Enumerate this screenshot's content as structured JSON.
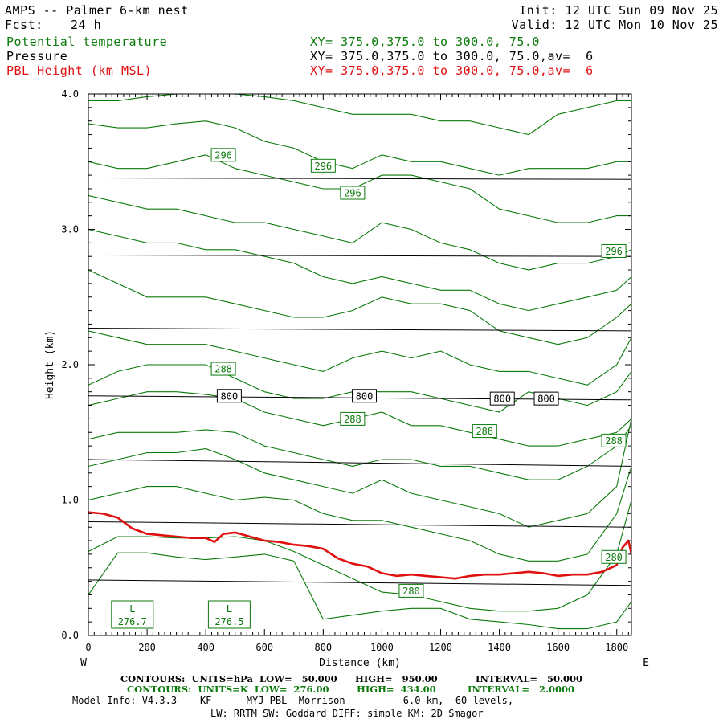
{
  "header": {
    "title": "AMPS -- Palmer 6-km nest",
    "fcst_label": "Fcst:",
    "fcst_value": "24 h",
    "init": "Init: 12 UTC Sun 09 Nov 25",
    "valid": "Valid: 12 UTC Mon 10 Nov 25",
    "field1_name": "Potential temperature",
    "field1_xy": "XY= 375.0,375.0 to 300.0, 75.0",
    "field2_name": "Pressure",
    "field2_xy": "XY= 375.0,375.0 to 300.0, 75.0,av=  6",
    "field3_name": "PBL Height (km MSL)",
    "field3_xy": "XY= 375.0,375.0 to 300.0, 75.0,av=  6"
  },
  "footer": {
    "line1_contours": "CONTOURS:  UNITS=hPa  LOW=   50.000",
    "line1_high": "HIGH=   950.00",
    "line1_interval": "INTERVAL=   50.000",
    "line2_contours": "CONTOURS:  UNITS=K  LOW=  276.00",
    "line2_high": "HIGH=  434.00",
    "line2_interval": "INTERVAL=   2.0000",
    "model_info": "Model Info: V4.3.3    KF      MYJ PBL  Morrison          6.0 km,  60 levels,",
    "physics": "LW: RRTM SW: Goddard DIFF: simple KM: 2D Smagor"
  },
  "colors": {
    "theta": "#0a7a0a",
    "pressure": "#000000",
    "pbl": "#e01010"
  },
  "chart_data": {
    "type": "line",
    "xlabel": "Distance (km)",
    "ylabel": "Height (km)",
    "xlim": [
      0,
      1850
    ],
    "ylim": [
      0,
      4.0
    ],
    "x_ticks": [
      0,
      200,
      400,
      600,
      800,
      1000,
      1200,
      1400,
      1600,
      1800
    ],
    "y_ticks": [
      "0.0",
      "1.0",
      "2.0",
      "3.0",
      "4.0"
    ],
    "x_left_label": "W",
    "x_right_label": "E",
    "pressure_lines": {
      "x": [
        0,
        1850
      ],
      "series": [
        {
          "y": [
            3.38,
            3.37
          ]
        },
        {
          "y": [
            2.81,
            2.8
          ]
        },
        {
          "y": [
            2.27,
            2.25
          ]
        },
        {
          "y": [
            1.77,
            1.74
          ]
        },
        {
          "y": [
            1.3,
            1.25
          ]
        },
        {
          "y": [
            0.84,
            0.8
          ]
        },
        {
          "y": [
            0.41,
            0.37
          ]
        }
      ],
      "labels": [
        {
          "text": "800",
          "x": 480,
          "y": 1.77
        },
        {
          "text": "800",
          "x": 940,
          "y": 1.77
        },
        {
          "text": "800",
          "x": 1410,
          "y": 1.75
        },
        {
          "text": "800",
          "x": 1560,
          "y": 1.75
        }
      ]
    },
    "theta_lines": {
      "x": [
        0,
        100,
        200,
        300,
        400,
        500,
        600,
        700,
        800,
        900,
        1000,
        1100,
        1200,
        1300,
        1400,
        1500,
        1600,
        1700,
        1800,
        1850
      ],
      "series": [
        {
          "y": [
            0.3,
            0.61,
            0.61,
            0.58,
            0.56,
            0.58,
            0.6,
            0.55,
            0.12,
            0.15,
            0.18,
            0.2,
            0.2,
            0.12,
            0.1,
            0.08,
            0.05,
            0.05,
            0.1,
            0.25
          ]
        },
        {
          "y": [
            0.62,
            0.73,
            0.73,
            0.72,
            0.72,
            0.73,
            0.7,
            0.62,
            0.52,
            0.42,
            0.32,
            0.3,
            0.25,
            0.2,
            0.18,
            0.18,
            0.2,
            0.3,
            0.6,
            1.0
          ]
        },
        {
          "y": [
            1.0,
            1.05,
            1.1,
            1.1,
            1.05,
            1.0,
            1.02,
            1.0,
            0.9,
            0.85,
            0.85,
            0.8,
            0.75,
            0.7,
            0.6,
            0.55,
            0.55,
            0.6,
            0.9,
            1.25
          ]
        },
        {
          "y": [
            1.25,
            1.3,
            1.35,
            1.35,
            1.38,
            1.3,
            1.2,
            1.15,
            1.1,
            1.05,
            1.15,
            1.05,
            1.0,
            0.95,
            0.9,
            0.8,
            0.85,
            0.9,
            1.1,
            1.6
          ]
        },
        {
          "y": [
            1.45,
            1.5,
            1.5,
            1.5,
            1.52,
            1.5,
            1.4,
            1.35,
            1.3,
            1.25,
            1.3,
            1.3,
            1.25,
            1.25,
            1.2,
            1.15,
            1.15,
            1.25,
            1.4,
            1.55
          ]
        },
        {
          "y": [
            1.7,
            1.75,
            1.8,
            1.8,
            1.78,
            1.75,
            1.65,
            1.6,
            1.55,
            1.6,
            1.65,
            1.55,
            1.55,
            1.5,
            1.45,
            1.4,
            1.4,
            1.45,
            1.5,
            1.6
          ]
        },
        {
          "y": [
            1.85,
            1.95,
            2.0,
            2.0,
            2.0,
            1.9,
            1.8,
            1.75,
            1.75,
            1.8,
            1.8,
            1.8,
            1.75,
            1.7,
            1.65,
            1.8,
            1.75,
            1.7,
            1.8,
            1.95
          ]
        },
        {
          "y": [
            2.25,
            2.2,
            2.15,
            2.15,
            2.15,
            2.1,
            2.05,
            2.0,
            1.95,
            2.05,
            2.1,
            2.05,
            2.1,
            2.0,
            1.95,
            1.95,
            1.9,
            1.85,
            2.0,
            2.2
          ]
        },
        {
          "y": [
            2.7,
            2.6,
            2.5,
            2.5,
            2.5,
            2.45,
            2.4,
            2.35,
            2.35,
            2.4,
            2.5,
            2.45,
            2.45,
            2.4,
            2.25,
            2.2,
            2.15,
            2.2,
            2.35,
            2.45
          ]
        },
        {
          "y": [
            3.0,
            2.95,
            2.9,
            2.9,
            2.85,
            2.85,
            2.8,
            2.75,
            2.65,
            2.6,
            2.65,
            2.6,
            2.55,
            2.55,
            2.45,
            2.4,
            2.45,
            2.5,
            2.55,
            2.65
          ]
        },
        {
          "y": [
            3.25,
            3.2,
            3.15,
            3.15,
            3.1,
            3.05,
            3.05,
            3.0,
            2.95,
            2.9,
            3.05,
            3.0,
            2.9,
            2.85,
            2.75,
            2.7,
            2.75,
            2.75,
            2.8,
            2.85
          ]
        },
        {
          "y": [
            3.5,
            3.45,
            3.45,
            3.5,
            3.55,
            3.45,
            3.4,
            3.35,
            3.3,
            3.3,
            3.4,
            3.4,
            3.35,
            3.3,
            3.15,
            3.1,
            3.05,
            3.05,
            3.1,
            3.1
          ]
        },
        {
          "y": [
            3.78,
            3.75,
            3.75,
            3.78,
            3.8,
            3.75,
            3.65,
            3.6,
            3.5,
            3.45,
            3.55,
            3.5,
            3.5,
            3.45,
            3.4,
            3.45,
            3.45,
            3.45,
            3.5,
            3.5
          ]
        },
        {
          "y": [
            3.95,
            3.95,
            3.98,
            4.0,
            4.0,
            4.0,
            3.98,
            3.95,
            3.9,
            3.85,
            3.85,
            3.85,
            3.8,
            3.8,
            3.75,
            3.7,
            3.85,
            3.9,
            3.95,
            3.95
          ]
        }
      ],
      "labels": [
        {
          "text": "296",
          "x": 460,
          "y": 3.55
        },
        {
          "text": "296",
          "x": 800,
          "y": 3.47
        },
        {
          "text": "296",
          "x": 900,
          "y": 3.27
        },
        {
          "text": "296",
          "x": 1790,
          "y": 2.84
        },
        {
          "text": "288",
          "x": 460,
          "y": 1.97
        },
        {
          "text": "288",
          "x": 900,
          "y": 1.6
        },
        {
          "text": "288",
          "x": 1350,
          "y": 1.51
        },
        {
          "text": "288",
          "x": 1790,
          "y": 1.44
        },
        {
          "text": "280",
          "x": 1100,
          "y": 0.33
        },
        {
          "text": "280",
          "x": 1790,
          "y": 0.58
        }
      ]
    },
    "pbl_height": {
      "name": "PBL Height (km MSL)",
      "x": [
        0,
        50,
        100,
        150,
        200,
        250,
        300,
        350,
        400,
        430,
        460,
        500,
        550,
        600,
        650,
        700,
        750,
        800,
        850,
        900,
        950,
        1000,
        1050,
        1100,
        1150,
        1200,
        1250,
        1300,
        1350,
        1400,
        1450,
        1500,
        1550,
        1600,
        1650,
        1700,
        1750,
        1800,
        1820,
        1840,
        1850
      ],
      "y": [
        0.91,
        0.9,
        0.87,
        0.79,
        0.75,
        0.74,
        0.73,
        0.72,
        0.72,
        0.69,
        0.75,
        0.76,
        0.73,
        0.7,
        0.69,
        0.67,
        0.66,
        0.64,
        0.57,
        0.53,
        0.51,
        0.46,
        0.44,
        0.45,
        0.44,
        0.43,
        0.42,
        0.44,
        0.45,
        0.45,
        0.46,
        0.47,
        0.46,
        0.44,
        0.45,
        0.45,
        0.47,
        0.52,
        0.65,
        0.7,
        0.6
      ]
    },
    "lows": [
      {
        "symbol": "L",
        "value": "276.7",
        "x": 150
      },
      {
        "symbol": "L",
        "value": "276.5",
        "x": 480
      }
    ]
  }
}
